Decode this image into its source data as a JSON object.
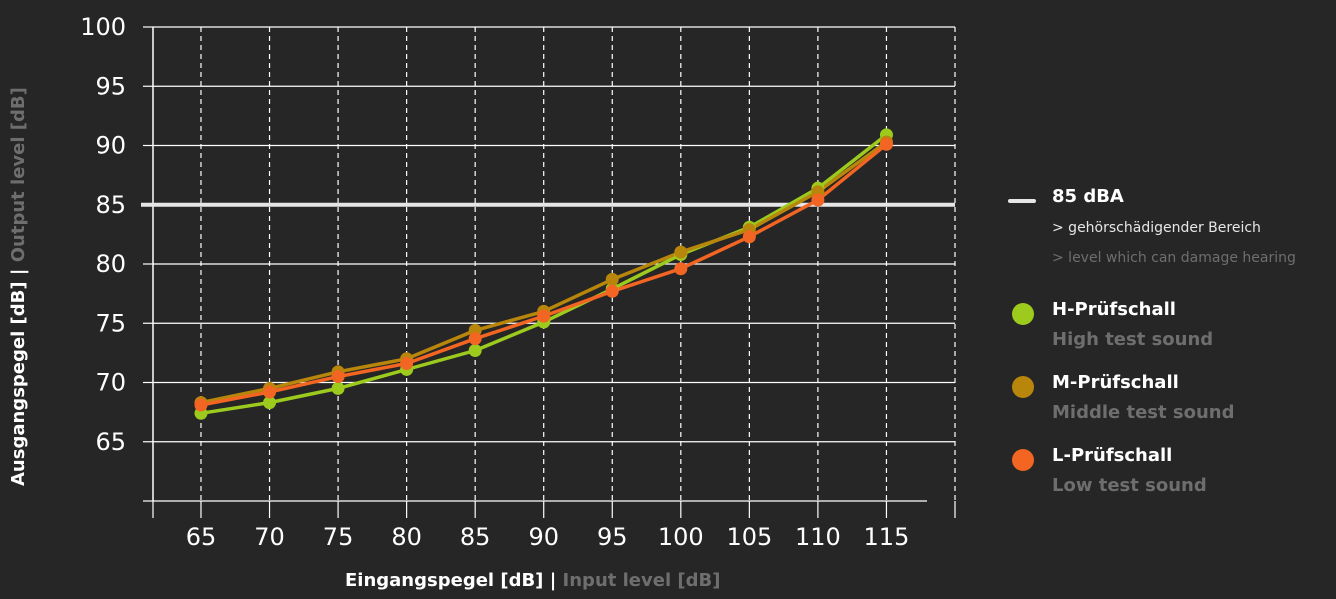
{
  "chart_data": {
    "type": "line",
    "x_label_de": "Eingangspegel [dB]",
    "x_label_sep": "|",
    "x_label_en": "Input level [dB]",
    "y_label_de": "Ausgangspegel [dB]",
    "y_label_sep": "|",
    "y_label_en": "Output level [dB]",
    "x": [
      65,
      70,
      75,
      80,
      85,
      90,
      95,
      100,
      105,
      110,
      115
    ],
    "x_ticks": [
      "65",
      "70",
      "75",
      "80",
      "85",
      "90",
      "95",
      "100",
      "105",
      "110",
      "115"
    ],
    "y_ticks": [
      "65",
      "70",
      "75",
      "80",
      "85",
      "90",
      "95",
      "100"
    ],
    "xlim": [
      61.5,
      120
    ],
    "ylim": [
      60,
      100
    ],
    "grid": true,
    "legend_position": "right",
    "threshold": {
      "value": 85,
      "label": "85 dBA",
      "desc_de": "> gehörschädigender Bereich",
      "desc_en": "> level which can damage hearing",
      "color": "#e6e6e6"
    },
    "series": [
      {
        "name": "H-Prüfschall",
        "name_en": "High test sound",
        "color": "#9ccb1e",
        "values": [
          67.4,
          68.3,
          69.5,
          71.1,
          72.7,
          75.1,
          77.9,
          80.8,
          83.1,
          86.4,
          90.9
        ]
      },
      {
        "name": "M-Prüfschall",
        "name_en": "Middle test sound",
        "color": "#b8860b",
        "values": [
          68.3,
          69.5,
          70.9,
          72.0,
          74.4,
          76.0,
          78.7,
          81.0,
          82.9,
          86.1,
          90.3
        ]
      },
      {
        "name": "L-Prüfschall",
        "name_en": "Low test sound",
        "color": "#f26522",
        "values": [
          68.1,
          69.2,
          70.5,
          71.6,
          73.7,
          75.6,
          77.7,
          79.6,
          82.3,
          85.4,
          90.1
        ]
      }
    ]
  }
}
